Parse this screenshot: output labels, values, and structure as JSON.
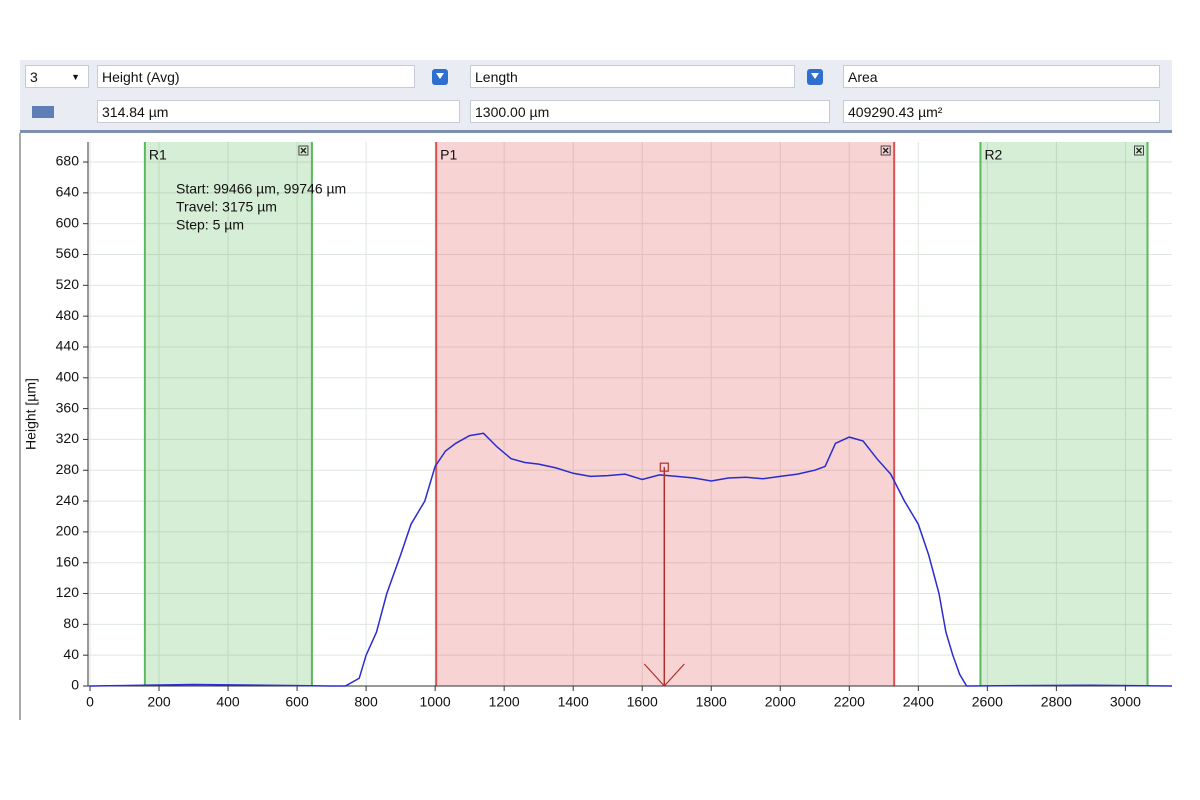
{
  "toolbar": {
    "count": "3",
    "measures": [
      {
        "name": "Height (Avg)",
        "value": "314.84 µm"
      },
      {
        "name": "Length",
        "value": "1300.00 µm"
      },
      {
        "name": "Area",
        "value": "409290.43 µm²"
      }
    ]
  },
  "chart_data": {
    "type": "line",
    "y_label": "Height [µm]",
    "annotations": [
      "Start: 99466 µm, 99746 µm",
      "Travel: 3175 µm",
      "Step: 5 µm"
    ],
    "x": [
      0,
      300,
      700,
      740,
      780,
      800,
      830,
      860,
      900,
      930,
      970,
      1000,
      1030,
      1060,
      1100,
      1140,
      1180,
      1220,
      1260,
      1300,
      1350,
      1400,
      1450,
      1500,
      1550,
      1600,
      1650,
      1700,
      1750,
      1800,
      1850,
      1900,
      1950,
      2000,
      2050,
      2100,
      2130,
      2160,
      2200,
      2240,
      2280,
      2320,
      2360,
      2400,
      2430,
      2460,
      2480,
      2500,
      2520,
      2540,
      2900,
      3135
    ],
    "values": [
      0,
      2,
      0,
      0,
      10,
      40,
      70,
      120,
      170,
      210,
      240,
      285,
      305,
      315,
      325,
      328,
      310,
      295,
      290,
      288,
      283,
      276,
      272,
      273,
      275,
      268,
      274,
      272,
      270,
      266,
      270,
      271,
      269,
      272,
      275,
      280,
      285,
      315,
      323,
      318,
      295,
      275,
      240,
      210,
      170,
      120,
      70,
      40,
      15,
      0,
      1,
      0
    ],
    "color": "#2b2bd0",
    "regions": [
      {
        "name": "R1",
        "start": 159,
        "end": 643,
        "color": "#5cb85c"
      },
      {
        "name": "P1",
        "start": 1003,
        "end": 2330,
        "color": "#e05050"
      },
      {
        "name": "R2",
        "start": 2580,
        "end": 3064,
        "color": "#5cb85c"
      }
    ],
    "cursor": {
      "x": 1664,
      "y": 284,
      "color": "#b03030"
    },
    "xlim": [
      0,
      3135
    ],
    "ylim": [
      0,
      706
    ],
    "xticks": [
      0,
      200,
      400,
      600,
      800,
      1000,
      1200,
      1400,
      1600,
      1800,
      2000,
      2200,
      2400,
      2600,
      2800,
      3000
    ],
    "yticks": [
      0,
      40,
      80,
      120,
      160,
      200,
      240,
      280,
      320,
      360,
      400,
      440,
      480,
      520,
      560,
      600,
      640,
      680
    ],
    "grid": true
  }
}
